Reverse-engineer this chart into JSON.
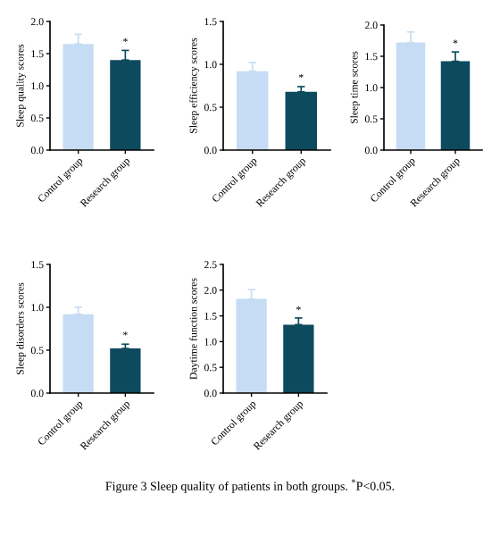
{
  "chart_data": [
    {
      "type": "bar",
      "ylabel": "Sleep quality scores",
      "categories": [
        "Control group",
        "Research group"
      ],
      "values": [
        1.65,
        1.4
      ],
      "colors": [
        "#c6dcf4",
        "#0d4a5e"
      ],
      "errors": [
        [
          1.65,
          1.8
        ],
        [
          1.4,
          1.55
        ]
      ],
      "ylim": [
        0,
        2
      ],
      "yticks": [
        {
          "value": 0,
          "label": "0.0"
        },
        {
          "value": 0.5,
          "label": "0.5"
        },
        {
          "value": 1,
          "label": "1.0"
        },
        {
          "value": 1.5,
          "label": "1.5"
        },
        {
          "value": 2,
          "label": "2.0"
        }
      ],
      "annotations": [
        {
          "text": "*",
          "x": "Research group",
          "y": 1.6
        }
      ]
    },
    {
      "type": "bar",
      "ylabel": "Sleep efficiency scores",
      "categories": [
        "Control group",
        "Research group"
      ],
      "values": [
        0.92,
        0.68
      ],
      "colors": [
        "#c6dcf4",
        "#0d4a5e"
      ],
      "errors": [
        [
          0.92,
          1.02
        ],
        [
          0.68,
          0.74
        ]
      ],
      "ylim": [
        0,
        1.5
      ],
      "yticks": [
        {
          "value": 0,
          "label": "0.0"
        },
        {
          "value": 0.5,
          "label": "0.5"
        },
        {
          "value": 1,
          "label": "1.0"
        },
        {
          "value": 1.5,
          "label": "1.5"
        }
      ],
      "annotations": [
        {
          "text": "*",
          "x": "Research group",
          "y": 0.78
        }
      ]
    },
    {
      "type": "bar",
      "ylabel": "Sleep time scores",
      "categories": [
        "Control group",
        "Research group"
      ],
      "values": [
        1.72,
        1.42
      ],
      "colors": [
        "#c6dcf4",
        "#0d4a5e"
      ],
      "errors": [
        [
          1.72,
          1.89
        ],
        [
          1.42,
          1.57
        ]
      ],
      "ylim": [
        0,
        2
      ],
      "yticks": [
        {
          "value": 0,
          "label": "0.0"
        },
        {
          "value": 0.5,
          "label": "0.5"
        },
        {
          "value": 1,
          "label": "1.0"
        },
        {
          "value": 1.5,
          "label": "1.5"
        },
        {
          "value": 2,
          "label": "2.0"
        }
      ],
      "annotations": [
        {
          "text": "*",
          "x": "Research group",
          "y": 1.62
        }
      ]
    },
    {
      "type": "bar",
      "ylabel": "Sleep disorders scores",
      "categories": [
        "Control group",
        "Research group"
      ],
      "values": [
        0.92,
        0.52
      ],
      "colors": [
        "#c6dcf4",
        "#0d4a5e"
      ],
      "errors": [
        [
          0.92,
          1.0
        ],
        [
          0.52,
          0.57
        ]
      ],
      "ylim": [
        0,
        1.5
      ],
      "yticks": [
        {
          "value": 0,
          "label": "0.0"
        },
        {
          "value": 0.5,
          "label": "0.5"
        },
        {
          "value": 1,
          "label": "1.0"
        },
        {
          "value": 1.5,
          "label": "1.5"
        }
      ],
      "annotations": [
        {
          "text": "*",
          "x": "Research group",
          "y": 0.61
        }
      ]
    },
    {
      "type": "bar",
      "ylabel": "Daytime function scores",
      "categories": [
        "Control group",
        "Research group"
      ],
      "values": [
        1.83,
        1.33
      ],
      "colors": [
        "#c6dcf4",
        "#0d4a5e"
      ],
      "errors": [
        [
          1.83,
          2.01
        ],
        [
          1.33,
          1.46
        ]
      ],
      "ylim": [
        0,
        2.5
      ],
      "yticks": [
        {
          "value": 0,
          "label": "0.0"
        },
        {
          "value": 0.5,
          "label": "0.5"
        },
        {
          "value": 1,
          "label": "1.0"
        },
        {
          "value": 1.5,
          "label": "1.5"
        },
        {
          "value": 2,
          "label": "2.0"
        },
        {
          "value": 2.5,
          "label": "2.5"
        }
      ],
      "annotations": [
        {
          "text": "*",
          "x": "Research group",
          "y": 1.51
        },
        "Figure 3 Sleep quality of patients in both groups. $^{*}$P<0.05."
      ]
    }
  ]
}
